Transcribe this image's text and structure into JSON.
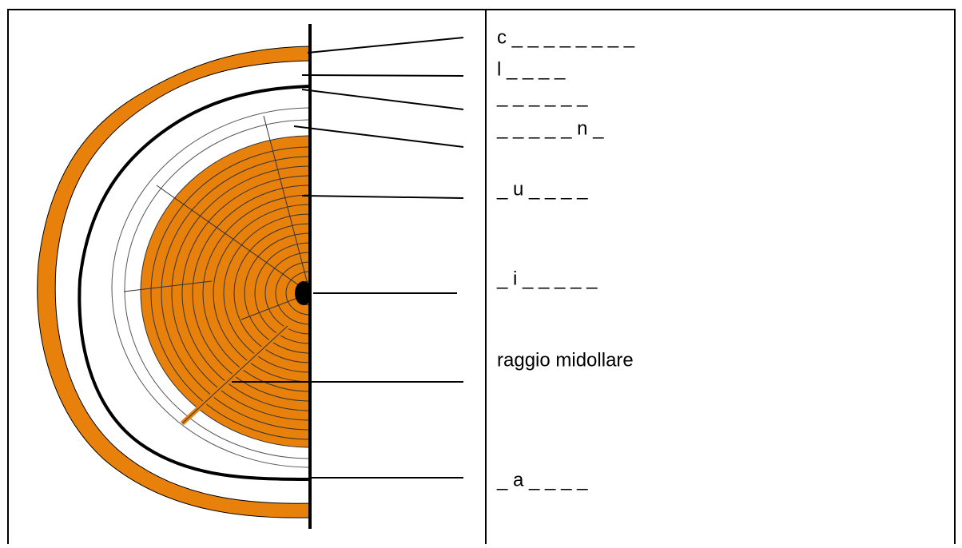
{
  "labels": [
    "c _ _ _ _ _ _ _ _",
    "l _ _ _ _",
    "_ _ _ _ _ _",
    "_ _ _ _ _ n _",
    "_ u _ _ _ _",
    "_ i _ _ _ _ _",
    "raggio midollare",
    "_ a _ _ _ _"
  ]
}
